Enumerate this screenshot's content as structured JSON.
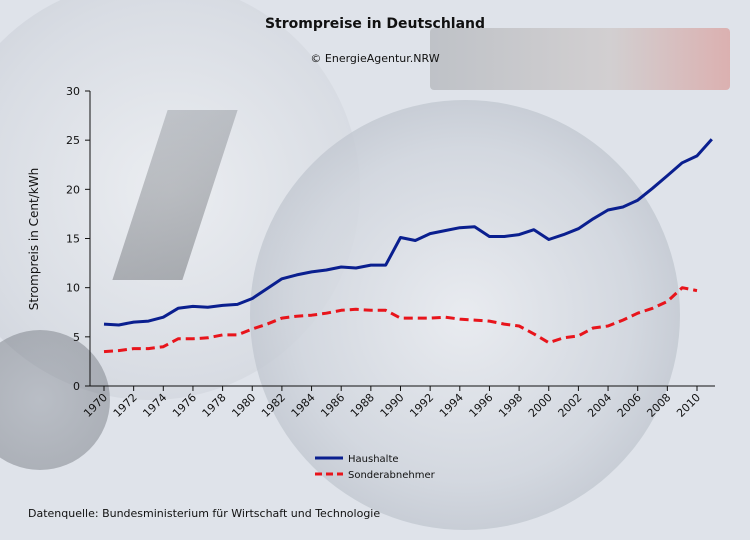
{
  "page": {
    "title": "Strompreise in Deutschland",
    "copyright": "© EnergieAgentur.NRW",
    "source": "Datenquelle: Bundesministerium für Wirtschaft und Technologie"
  },
  "chart_data": {
    "type": "line",
    "title": "Strompreise in Deutschland",
    "xlabel": "",
    "ylabel": "Strompreis in Cent/kWh",
    "xlim": [
      1970,
      2011
    ],
    "ylim": [
      0,
      30
    ],
    "yticks": [
      0,
      5,
      10,
      15,
      20,
      25,
      30
    ],
    "xticks": [
      1970,
      1972,
      1974,
      1976,
      1978,
      1980,
      1982,
      1984,
      1986,
      1988,
      1990,
      1992,
      1994,
      1996,
      1998,
      2000,
      2002,
      2004,
      2006,
      2008,
      2010
    ],
    "grid": false,
    "legend_position": "bottom-center",
    "series": [
      {
        "name": "Haushalte",
        "color": "#0a1f8f",
        "style": "solid",
        "x": [
          1970,
          1971,
          1972,
          1973,
          1974,
          1975,
          1976,
          1977,
          1978,
          1979,
          1980,
          1981,
          1982,
          1983,
          1984,
          1985,
          1986,
          1987,
          1988,
          1989,
          1990,
          1991,
          1992,
          1993,
          1994,
          1995,
          1996,
          1997,
          1998,
          1999,
          2000,
          2001,
          2002,
          2003,
          2004,
          2005,
          2006,
          2007,
          2008,
          2009,
          2010,
          2011
        ],
        "values": [
          6.3,
          6.2,
          6.5,
          6.6,
          7.0,
          7.9,
          8.1,
          8.0,
          8.2,
          8.3,
          8.9,
          9.9,
          10.9,
          11.3,
          11.6,
          11.8,
          12.1,
          12.0,
          12.3,
          12.3,
          15.1,
          14.8,
          15.5,
          15.8,
          16.1,
          16.2,
          15.2,
          15.2,
          15.4,
          15.9,
          14.9,
          15.4,
          16.0,
          17.0,
          17.9,
          18.2,
          18.9,
          20.1,
          21.4,
          22.7,
          23.4,
          25.1
        ]
      },
      {
        "name": "Sonderabnehmer",
        "color": "#e8141b",
        "style": "dashed",
        "x": [
          1970,
          1971,
          1972,
          1973,
          1974,
          1975,
          1976,
          1977,
          1978,
          1979,
          1980,
          1981,
          1982,
          1983,
          1984,
          1985,
          1986,
          1987,
          1988,
          1989,
          1990,
          1991,
          1992,
          1993,
          1994,
          1995,
          1996,
          1997,
          1998,
          1999,
          2000,
          2001,
          2002,
          2003,
          2004,
          2005,
          2006,
          2007,
          2008,
          2009,
          2010
        ],
        "values": [
          3.5,
          3.6,
          3.8,
          3.8,
          4.0,
          4.8,
          4.8,
          4.9,
          5.2,
          5.2,
          5.8,
          6.3,
          6.9,
          7.1,
          7.2,
          7.4,
          7.7,
          7.8,
          7.7,
          7.7,
          6.9,
          6.9,
          6.9,
          7.0,
          6.8,
          6.7,
          6.6,
          6.3,
          6.1,
          5.3,
          4.4,
          4.9,
          5.1,
          5.9,
          6.1,
          6.7,
          7.4,
          7.9,
          8.6,
          10.0,
          9.7
        ]
      }
    ]
  }
}
